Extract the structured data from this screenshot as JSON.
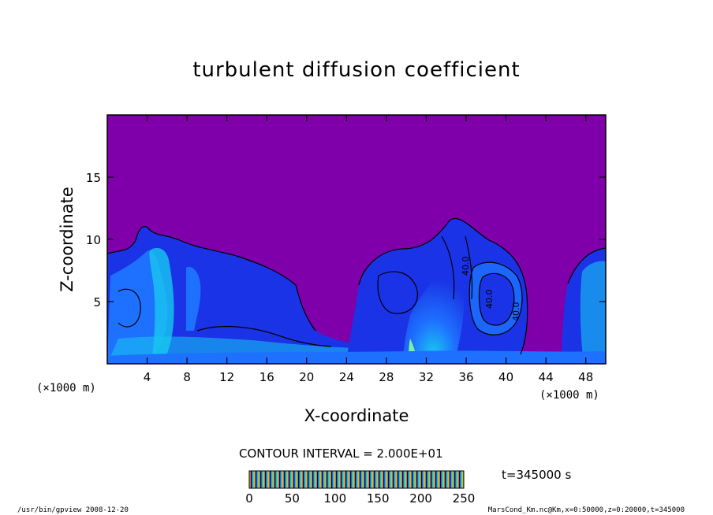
{
  "chart_data": {
    "type": "heatmap",
    "title": "turbulent diffusion coefficient",
    "xlabel": "X-coordinate",
    "ylabel": "Z-coordinate",
    "x_unit": "(×1000 m)",
    "z_unit": "(×1000 m)",
    "x_ticks": [
      4,
      8,
      12,
      16,
      20,
      24,
      28,
      32,
      36,
      40,
      44,
      48
    ],
    "y_ticks": [
      5,
      10,
      15
    ],
    "xlim": [
      0,
      50
    ],
    "ylim": [
      0,
      20
    ],
    "contour_interval_text": "CONTOUR INTERVAL = 2.000E+01",
    "time_text": "t=345000 s",
    "colorbar_ticks": [
      0,
      50,
      100,
      150,
      200,
      250
    ],
    "colorbar_range": [
      0,
      250
    ],
    "contour_labels": [
      "40.0",
      "40.0",
      "40.0"
    ],
    "background_color": "#7f00aa",
    "colors": {
      "low": "#7f00aa",
      "mid": "#1a33e6",
      "high": "#18c8f0",
      "peak": "#7cf2a0"
    },
    "grid": false
  },
  "footer": {
    "left": "/usr/bin/gpview   2008-12-20",
    "right": "MarsCond_Km.nc@Km,x=0:50000,z=0:20000,t=345000"
  }
}
